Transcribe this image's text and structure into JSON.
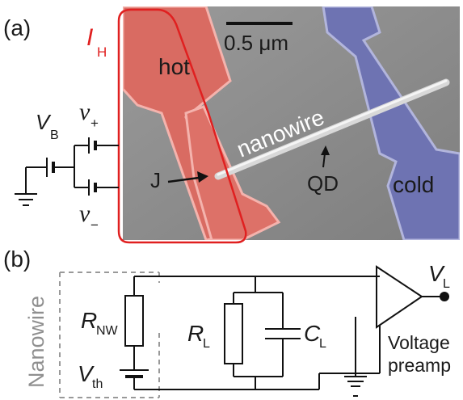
{
  "panel_a": {
    "label": "(a)",
    "current_label": "I",
    "current_sub": "H",
    "bias_label": "V",
    "bias_sub": "B",
    "vplus_label": "v",
    "vplus_sub": "+",
    "vminus_label": "v",
    "vminus_sub": "−",
    "hot_label": "hot",
    "cold_label": "cold",
    "nanowire_label": "nanowire",
    "junction_label": "J",
    "qd_label": "QD",
    "scalebar_label": "0.5 μm",
    "colors": {
      "hot": "#e0746c",
      "cold": "#7478b8",
      "current_loop": "#e02020",
      "sem_background": "#8a8a8a"
    }
  },
  "panel_b": {
    "label": "(b)",
    "nanowire_box_label": "Nanowire",
    "rnw_label": "R",
    "rnw_sub": "NW",
    "vth_label": "V",
    "vth_sub": "th",
    "rl_label": "R",
    "rl_sub": "L",
    "cl_label": "C",
    "cl_sub": "L",
    "vl_label": "V",
    "vl_sub": "L",
    "amp_label_line1": "Voltage",
    "amp_label_line2": "preamp"
  }
}
